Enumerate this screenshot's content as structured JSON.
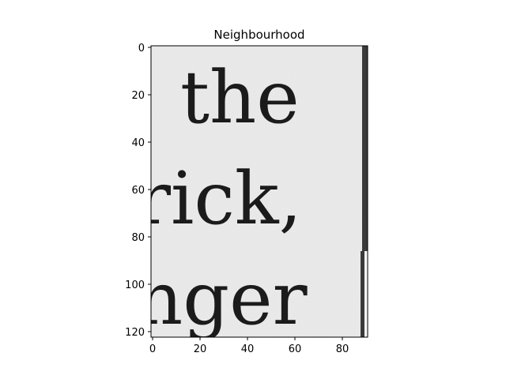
{
  "title": "Neighbourhood",
  "image_text": [
    "the",
    "rick,",
    "nger"
  ],
  "colors": {
    "paper": "#ececec",
    "ink": "#1b1b1b",
    "edge_bar": "#3a3a3a"
  },
  "axes": {
    "x_ticks": [
      "0",
      "20",
      "40",
      "60",
      "80"
    ],
    "y_ticks": [
      "0",
      "20",
      "40",
      "60",
      "80",
      "100",
      "120"
    ]
  }
}
